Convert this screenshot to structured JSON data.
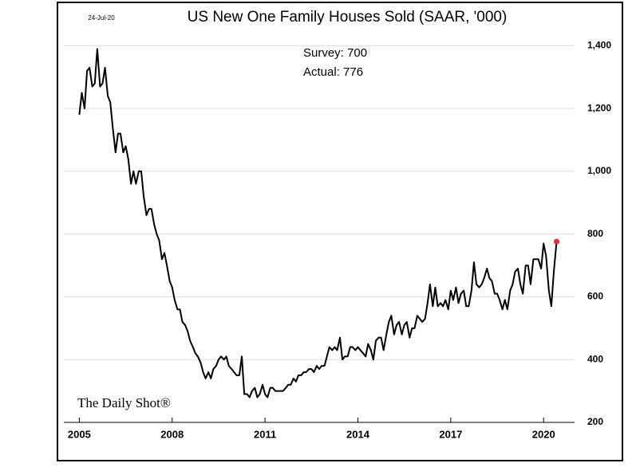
{
  "chart_data": {
    "type": "line",
    "title": "US New One Family Houses Sold (SAAR, '000)",
    "date_label": "24-Jul-20",
    "annotations": [
      "Survey: 700",
      "Actual:  776"
    ],
    "source": "The Daily Shot®",
    "x": [
      2005.0,
      2005.08,
      2005.17,
      2005.25,
      2005.33,
      2005.42,
      2005.5,
      2005.58,
      2005.67,
      2005.75,
      2005.83,
      2005.92,
      2006.0,
      2006.08,
      2006.17,
      2006.25,
      2006.33,
      2006.42,
      2006.5,
      2006.58,
      2006.67,
      2006.75,
      2006.83,
      2006.92,
      2007.0,
      2007.08,
      2007.17,
      2007.25,
      2007.33,
      2007.42,
      2007.5,
      2007.58,
      2007.67,
      2007.75,
      2007.83,
      2007.92,
      2008.0,
      2008.08,
      2008.17,
      2008.25,
      2008.33,
      2008.42,
      2008.5,
      2008.58,
      2008.67,
      2008.75,
      2008.83,
      2008.92,
      2009.0,
      2009.08,
      2009.17,
      2009.25,
      2009.33,
      2009.42,
      2009.5,
      2009.58,
      2009.67,
      2009.75,
      2009.83,
      2009.92,
      2010.0,
      2010.08,
      2010.17,
      2010.25,
      2010.33,
      2010.42,
      2010.5,
      2010.58,
      2010.67,
      2010.75,
      2010.83,
      2010.92,
      2011.0,
      2011.08,
      2011.17,
      2011.25,
      2011.33,
      2011.42,
      2011.5,
      2011.58,
      2011.67,
      2011.75,
      2011.83,
      2011.92,
      2012.0,
      2012.08,
      2012.17,
      2012.25,
      2012.33,
      2012.42,
      2012.5,
      2012.58,
      2012.67,
      2012.75,
      2012.83,
      2012.92,
      2013.0,
      2013.08,
      2013.17,
      2013.25,
      2013.33,
      2013.42,
      2013.5,
      2013.58,
      2013.67,
      2013.75,
      2013.83,
      2013.92,
      2014.0,
      2014.08,
      2014.17,
      2014.25,
      2014.33,
      2014.42,
      2014.5,
      2014.58,
      2014.67,
      2014.75,
      2014.83,
      2014.92,
      2015.0,
      2015.08,
      2015.17,
      2015.25,
      2015.33,
      2015.42,
      2015.5,
      2015.58,
      2015.67,
      2015.75,
      2015.83,
      2015.92,
      2016.0,
      2016.08,
      2016.17,
      2016.25,
      2016.33,
      2016.42,
      2016.5,
      2016.58,
      2016.67,
      2016.75,
      2016.83,
      2016.92,
      2017.0,
      2017.08,
      2017.17,
      2017.25,
      2017.33,
      2017.42,
      2017.5,
      2017.58,
      2017.67,
      2017.75,
      2017.83,
      2017.92,
      2018.0,
      2018.08,
      2018.17,
      2018.25,
      2018.33,
      2018.42,
      2018.5,
      2018.58,
      2018.67,
      2018.75,
      2018.83,
      2018.92,
      2019.0,
      2019.08,
      2019.17,
      2019.25,
      2019.33,
      2019.42,
      2019.5,
      2019.58,
      2019.67,
      2019.75,
      2019.83,
      2019.92,
      2020.0,
      2020.08,
      2020.17,
      2020.25,
      2020.33,
      2020.42
    ],
    "series": [
      {
        "color": "#000000",
        "highlight_color": "#e8302a",
        "values": [
          1180,
          1250,
          1200,
          1320,
          1330,
          1270,
          1280,
          1390,
          1270,
          1280,
          1330,
          1240,
          1220,
          1140,
          1060,
          1120,
          1120,
          1060,
          1080,
          1040,
          960,
          1000,
          960,
          1000,
          1000,
          920,
          860,
          880,
          880,
          830,
          800,
          780,
          720,
          740,
          700,
          650,
          630,
          590,
          560,
          560,
          520,
          510,
          490,
          460,
          440,
          420,
          410,
          390,
          360,
          340,
          360,
          340,
          370,
          380,
          400,
          410,
          400,
          410,
          380,
          370,
          360,
          350,
          350,
          410,
          290,
          290,
          280,
          300,
          310,
          280,
          290,
          320,
          290,
          280,
          310,
          310,
          300,
          300,
          300,
          300,
          310,
          320,
          320,
          340,
          330,
          350,
          350,
          360,
          360,
          370,
          370,
          360,
          380,
          370,
          380,
          380,
          410,
          440,
          430,
          440,
          430,
          470,
          400,
          410,
          410,
          440,
          440,
          430,
          440,
          430,
          420,
          410,
          450,
          430,
          400,
          460,
          470,
          470,
          430,
          480,
          520,
          540,
          480,
          510,
          520,
          480,
          510,
          520,
          470,
          500,
          500,
          540,
          530,
          520,
          530,
          580,
          640,
          570,
          630,
          570,
          580,
          570,
          590,
          560,
          620,
          590,
          630,
          580,
          610,
          620,
          570,
          570,
          620,
          710,
          640,
          630,
          640,
          660,
          690,
          660,
          650,
          610,
          610,
          590,
          560,
          590,
          560,
          620,
          640,
          680,
          690,
          640,
          610,
          700,
          700,
          640,
          720,
          720,
          720,
          690,
          770,
          730,
          620,
          570,
          680,
          776
        ]
      }
    ],
    "xlim": [
      2004.5,
      2021.0
    ],
    "xticks": [
      2005,
      2008,
      2011,
      2014,
      2017,
      2020
    ],
    "ylim": [
      200,
      1500
    ],
    "yticks": [
      {
        "value": 200,
        "label": "200"
      },
      {
        "value": 400,
        "label": "400"
      },
      {
        "value": 600,
        "label": "600"
      },
      {
        "value": 800,
        "label": "800"
      },
      {
        "value": 1000,
        "label": "1,000"
      },
      {
        "value": 1200,
        "label": "1,200"
      },
      {
        "value": 1400,
        "label": "1,400"
      }
    ],
    "grid": true
  }
}
